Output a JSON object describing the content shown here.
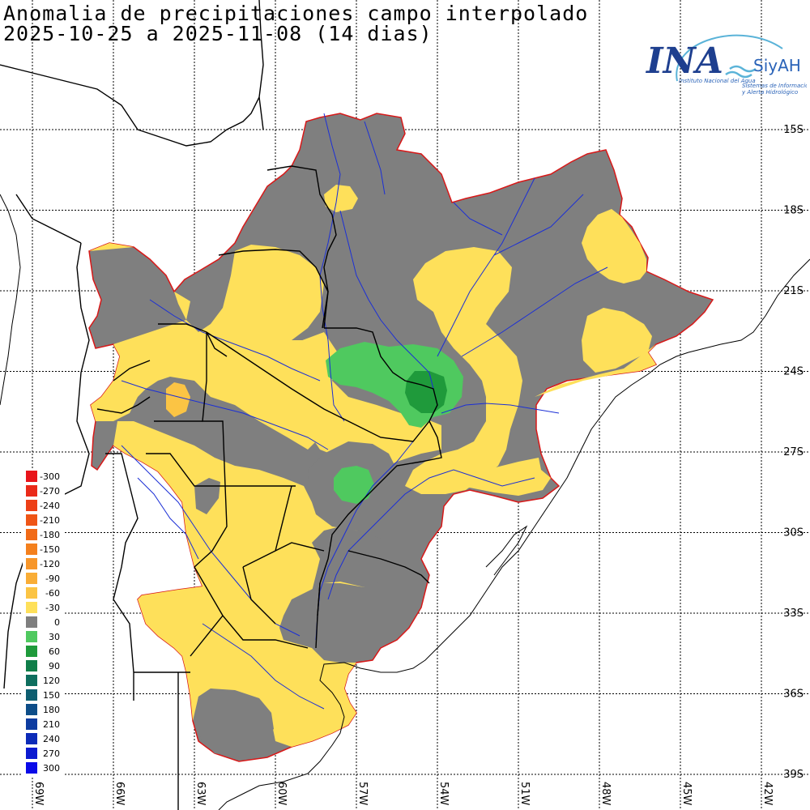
{
  "title": {
    "line1": "Anomalia de precipitaciones campo interpolado",
    "line2": "2025-10-25 a 2025-11-08 (14 dias)"
  },
  "logo": {
    "ina": "INA",
    "siyah": "SiyAH",
    "subtitle": "Instituto Nacional del Agua",
    "tagline1": "Sistemas de Información",
    "tagline2": "y Alerta Hidrológico"
  },
  "grid": {
    "latitudes": [
      "15S",
      "18S",
      "21S",
      "24S",
      "27S",
      "30S",
      "33S",
      "36S",
      "39S"
    ],
    "longitudes": [
      "69W",
      "66W",
      "63W",
      "60W",
      "57W",
      "54W",
      "51W",
      "48W",
      "45W",
      "42W"
    ]
  },
  "legend": {
    "items": [
      {
        "label": "-300",
        "color": "#e8151b"
      },
      {
        "label": "-270",
        "color": "#ea2a19"
      },
      {
        "label": "-240",
        "color": "#ed3f17"
      },
      {
        "label": "-210",
        "color": "#ef5516"
      },
      {
        "label": "-180",
        "color": "#f16a17"
      },
      {
        "label": "-150",
        "color": "#f4801d"
      },
      {
        "label": "-120",
        "color": "#f7962a"
      },
      {
        "label": "-90",
        "color": "#f9ad36"
      },
      {
        "label": "-60",
        "color": "#fbc444"
      },
      {
        "label": "-30",
        "color": "#fee05a"
      },
      {
        "label": "0",
        "color": "#7f7f7f"
      },
      {
        "label": "30",
        "color": "#4fc95f"
      },
      {
        "label": "60",
        "color": "#1f9a3b"
      },
      {
        "label": "90",
        "color": "#0f7e49"
      },
      {
        "label": "120",
        "color": "#0e6e5e"
      },
      {
        "label": "150",
        "color": "#0e5e70"
      },
      {
        "label": "180",
        "color": "#0d4d88"
      },
      {
        "label": "210",
        "color": "#0d3ca0"
      },
      {
        "label": "240",
        "color": "#0c2bb8"
      },
      {
        "label": "270",
        "color": "#0b1ad0"
      },
      {
        "label": "300",
        "color": "#0a0ae8"
      }
    ]
  },
  "colors": {
    "basin_outline": "#d81818",
    "rivers": "#1b2fd6",
    "borders": "#000000",
    "grid": "#000000",
    "anomaly_gray": "#7f7f7f",
    "anomaly_yellow": "#fee05a",
    "anomaly_orange": "#fbc444",
    "anomaly_green": "#4fc95f",
    "anomaly_dark_green": "#1f9a3b"
  }
}
